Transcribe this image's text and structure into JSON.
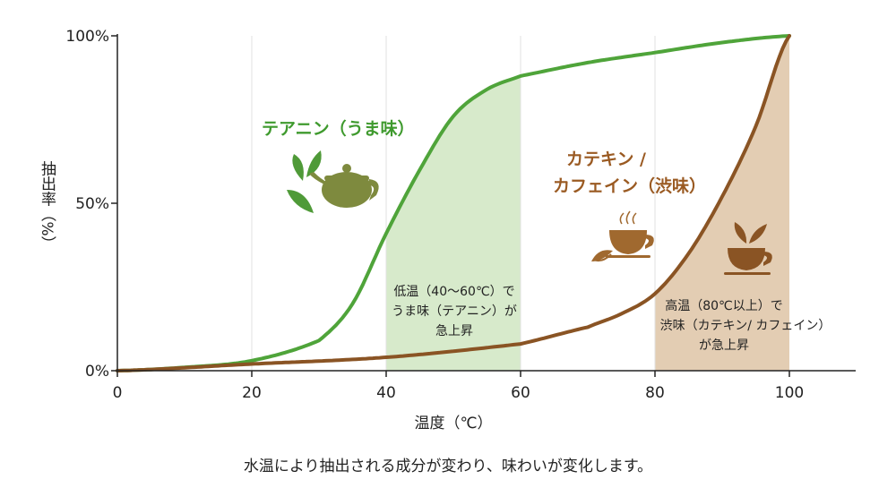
{
  "chart_data": {
    "type": "line",
    "xlabel": "温度（℃）",
    "ylabel": "抽出率（%）",
    "xlim": [
      0,
      100
    ],
    "ylim": [
      0,
      100
    ],
    "x_ticks": [
      "0",
      "20",
      "40",
      "60",
      "80",
      "100"
    ],
    "y_ticks": [
      "0%",
      "50%",
      "100%"
    ],
    "grid": "vertical",
    "series": [
      {
        "name": "テアニン（うま味）",
        "color": "#4fa43a",
        "x": [
          0,
          10,
          20,
          30,
          35,
          40,
          45,
          50,
          55,
          60,
          70,
          80,
          90,
          100
        ],
        "y": [
          0,
          1,
          3,
          9,
          20,
          41,
          60,
          76,
          84,
          88,
          92,
          95,
          98,
          100
        ]
      },
      {
        "name_lines": [
          "カテキン /",
          "カフェイン（渋味）"
        ],
        "color": "#8a5424",
        "x": [
          0,
          20,
          40,
          60,
          70,
          75,
          80,
          85,
          90,
          95,
          100
        ],
        "y": [
          0,
          2,
          4,
          8,
          13,
          17,
          23,
          35,
          52,
          73,
          100
        ]
      }
    ],
    "shaded_ranges": [
      {
        "x": [
          40,
          60
        ],
        "under_series": 0,
        "color": "#d7eacb",
        "lines": [
          "低温（40〜60℃）で",
          "うま味（テアニン）が",
          "急上昇"
        ]
      },
      {
        "x": [
          80,
          100
        ],
        "under_series": 1,
        "color": "#e3cdb3",
        "lines": [
          "高温（80℃以上）で",
          "渋味（カテキン/ カフェイン）",
          "が急上昇"
        ]
      }
    ],
    "caption": "水温により抽出される成分が変わり、味わいが変化します。",
    "icons": [
      "tea-leaves-icon",
      "teapot-icon",
      "steaming-cup-icon",
      "tea-cup-icon"
    ]
  }
}
